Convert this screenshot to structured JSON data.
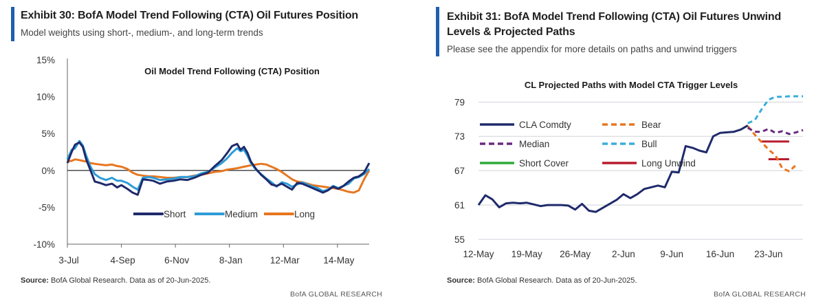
{
  "left_panel": {
    "title": "Exhibit 30: BofA Model Trend Following (CTA) Oil Futures Position",
    "subtitle": "Model weights using short-, medium-, and long-term trends",
    "source_label": "Source:",
    "source_text": " BofA Global Research.  Data as of 20-Jun-2025.",
    "brand": "BofA GLOBAL RESEARCH"
  },
  "right_panel": {
    "title": "Exhibit 31: BofA Model Trend Following (CTA) Oil Futures Unwind Levels & Projected Paths",
    "subtitle": "Please see the appendix for more details on paths and unwind triggers",
    "source_label": "Source:",
    "source_text": " BofA Global Research.  Data as of 20-Jun-2025.",
    "brand": "BofA GLOBAL RESEARCH"
  },
  "chart_data": [
    {
      "type": "line",
      "title": "Oil Model Trend Following (CTA) Position",
      "xlabel": "",
      "ylabel": "",
      "ylim": [
        -10,
        15
      ],
      "yticks": [
        15,
        10,
        5,
        0,
        -5,
        -10
      ],
      "ytick_labels": [
        "15%",
        "10%",
        "5%",
        "0%",
        "-5%",
        "-10%"
      ],
      "x_tick_labels": [
        "3-Jul",
        "4-Sep",
        "6-Nov",
        "8-Jan",
        "12-Mar",
        "14-May"
      ],
      "x_tick_positions": [
        0,
        63,
        126,
        189,
        252,
        315
      ],
      "x_range": [
        0,
        352
      ],
      "grid": false,
      "zero_line": true,
      "legend_position": "bottom-center",
      "series": [
        {
          "name": "Short",
          "color": "#1f2a6b",
          "x": [
            0,
            5,
            9,
            14,
            18,
            22,
            27,
            32,
            38,
            45,
            52,
            58,
            63,
            70,
            76,
            82,
            88,
            95,
            100,
            108,
            116,
            124,
            132,
            140,
            148,
            156,
            164,
            172,
            180,
            186,
            192,
            198,
            202,
            206,
            210,
            214,
            220,
            226,
            232,
            238,
            244,
            250,
            256,
            262,
            268,
            274,
            280,
            286,
            292,
            298,
            304,
            310,
            316,
            322,
            328,
            334,
            340,
            346,
            352
          ],
          "values": [
            1.0,
            2.5,
            3.5,
            3.8,
            3.2,
            1.5,
            0.0,
            -1.5,
            -1.7,
            -2.0,
            -1.8,
            -2.3,
            -2.0,
            -2.5,
            -3.0,
            -3.3,
            -1.2,
            -1.3,
            -1.4,
            -1.8,
            -1.5,
            -1.4,
            -1.2,
            -1.3,
            -1.0,
            -0.6,
            -0.3,
            0.6,
            1.4,
            2.3,
            3.3,
            3.6,
            2.8,
            3.2,
            2.4,
            1.2,
            0.2,
            -0.6,
            -1.2,
            -1.9,
            -2.1,
            -1.8,
            -2.2,
            -2.6,
            -1.7,
            -1.8,
            -2.1,
            -2.4,
            -2.7,
            -3.0,
            -2.7,
            -2.2,
            -2.5,
            -2.1,
            -1.5,
            -1.0,
            -0.8,
            -0.3,
            1.0
          ]
        },
        {
          "name": "Medium",
          "color": "#2e9cd7",
          "x": [
            0,
            5,
            9,
            14,
            18,
            22,
            27,
            32,
            38,
            45,
            52,
            58,
            63,
            70,
            76,
            82,
            88,
            95,
            100,
            108,
            116,
            124,
            132,
            140,
            148,
            156,
            164,
            172,
            180,
            186,
            192,
            198,
            202,
            206,
            210,
            214,
            220,
            226,
            232,
            238,
            244,
            250,
            256,
            262,
            268,
            274,
            280,
            286,
            292,
            298,
            304,
            310,
            316,
            322,
            328,
            334,
            340,
            346,
            352
          ],
          "values": [
            1.5,
            2.8,
            3.0,
            4.0,
            3.4,
            2.0,
            0.5,
            -0.5,
            -1.0,
            -1.3,
            -1.0,
            -1.4,
            -1.4,
            -1.7,
            -2.2,
            -2.6,
            -1.0,
            -0.9,
            -1.0,
            -1.3,
            -1.2,
            -1.1,
            -0.9,
            -0.9,
            -0.8,
            -0.4,
            -0.2,
            0.4,
            1.0,
            1.6,
            2.4,
            3.0,
            2.6,
            2.8,
            2.0,
            1.0,
            0.1,
            -0.5,
            -1.1,
            -1.6,
            -2.2,
            -1.6,
            -1.8,
            -2.2,
            -1.9,
            -1.6,
            -1.9,
            -2.2,
            -2.4,
            -2.8,
            -2.6,
            -2.1,
            -2.4,
            -2.1,
            -1.8,
            -1.1,
            -0.9,
            -0.5,
            0.2
          ]
        },
        {
          "name": "Long",
          "color": "#e8761f",
          "x": [
            0,
            5,
            9,
            14,
            18,
            22,
            27,
            32,
            38,
            45,
            52,
            58,
            63,
            70,
            76,
            82,
            88,
            95,
            100,
            108,
            116,
            124,
            132,
            140,
            148,
            156,
            164,
            172,
            180,
            186,
            192,
            198,
            202,
            206,
            210,
            214,
            220,
            226,
            232,
            238,
            244,
            250,
            256,
            262,
            268,
            274,
            280,
            286,
            292,
            298,
            304,
            310,
            316,
            322,
            328,
            334,
            340,
            346,
            352
          ],
          "values": [
            1.2,
            1.3,
            1.5,
            1.4,
            1.3,
            1.2,
            1.0,
            0.9,
            0.8,
            0.7,
            0.8,
            0.6,
            0.5,
            0.2,
            -0.3,
            -0.6,
            -0.7,
            -0.8,
            -0.8,
            -0.9,
            -1.0,
            -1.0,
            -0.9,
            -0.9,
            -0.7,
            -0.6,
            -0.4,
            -0.2,
            -0.1,
            0.1,
            0.2,
            0.3,
            0.4,
            0.5,
            0.6,
            0.7,
            0.8,
            0.9,
            0.8,
            0.5,
            0.2,
            -0.2,
            -0.7,
            -1.2,
            -1.5,
            -1.6,
            -1.8,
            -2.0,
            -2.1,
            -2.2,
            -2.3,
            -2.4,
            -2.5,
            -2.7,
            -2.9,
            -3.0,
            -2.7,
            -1.2,
            0.0
          ]
        }
      ]
    },
    {
      "type": "line",
      "title": "CL Projected Paths with Model CTA Trigger Levels",
      "xlabel": "",
      "ylabel": "",
      "ylim": [
        55,
        80
      ],
      "yticks": [
        55,
        61,
        67,
        73,
        79
      ],
      "ytick_labels": [
        "55",
        "61",
        "67",
        "73",
        "79"
      ],
      "x_tick_labels": [
        "12-May",
        "19-May",
        "26-May",
        "2-Jun",
        "9-Jun",
        "16-Jun",
        "23-Jun"
      ],
      "x_tick_positions": [
        0,
        7,
        14,
        21,
        28,
        35,
        42
      ],
      "x_range": [
        0,
        47
      ],
      "grid": true,
      "legend_position": "top-left",
      "series": [
        {
          "name": "CLA Comdty",
          "color": "#1f2a6b",
          "style": "solid",
          "x": [
            0,
            1,
            2,
            3,
            4,
            5,
            6,
            7,
            8,
            9,
            10,
            11,
            12,
            13,
            14,
            15,
            16,
            17,
            18,
            19,
            20,
            21,
            22,
            23,
            24,
            25,
            26,
            27,
            28,
            29,
            30,
            31,
            32,
            33,
            34,
            35,
            36,
            37,
            38,
            39
          ],
          "values": [
            61.0,
            62.7,
            62.0,
            60.6,
            61.3,
            61.4,
            61.3,
            61.4,
            61.1,
            60.8,
            61.0,
            61.0,
            61.0,
            60.9,
            60.2,
            61.2,
            60.0,
            59.8,
            60.5,
            61.2,
            61.9,
            62.9,
            62.2,
            62.9,
            63.8,
            64.1,
            64.4,
            64.1,
            66.8,
            66.7,
            71.3,
            71.0,
            70.5,
            70.2,
            73.0,
            73.6,
            73.7,
            73.8,
            74.2,
            74.9
          ]
        },
        {
          "name": "Bear",
          "color": "#e8761f",
          "style": "dashed",
          "x": [
            39,
            40,
            41,
            42,
            43,
            44,
            45,
            46
          ],
          "values": [
            74.8,
            73.3,
            72.0,
            70.7,
            69.7,
            67.4,
            66.9,
            68.0
          ]
        },
        {
          "name": "Median",
          "color": "#6a2a7e",
          "style": "dashed",
          "x": [
            39,
            40,
            41,
            42,
            43,
            44,
            45,
            46,
            47
          ],
          "values": [
            74.5,
            73.8,
            73.8,
            74.3,
            73.6,
            73.9,
            73.4,
            73.7,
            74.1
          ]
        },
        {
          "name": "Bull",
          "color": "#3aaed8",
          "style": "dashed",
          "x": [
            39,
            40,
            41,
            42,
            43,
            44,
            45,
            46,
            47
          ],
          "values": [
            75.3,
            75.8,
            77.7,
            79.4,
            79.9,
            79.9,
            80.0,
            80.0,
            80.0
          ]
        },
        {
          "name": "Short Cover",
          "color": "#2eaa3a",
          "style": "solid",
          "x": [],
          "values": []
        },
        {
          "name": "Long Unwind",
          "color": "#b91c2e",
          "style": "level",
          "levels": [
            {
              "x": [
                41,
                45
              ],
              "value": 72.1
            },
            {
              "x": [
                42,
                45
              ],
              "value": 69.0
            }
          ]
        }
      ]
    }
  ]
}
